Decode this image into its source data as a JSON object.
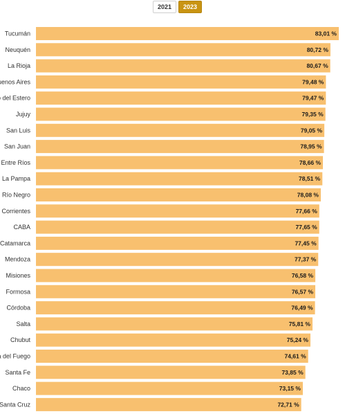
{
  "toggle": {
    "options": [
      "2021",
      "2023"
    ],
    "selected": "2023"
  },
  "colors": {
    "bar": "#f8c06f",
    "toggle_active": "#c99412"
  },
  "chart_data": {
    "type": "bar",
    "orientation": "horizontal",
    "categories": [
      "Tucumán",
      "Neuquén",
      "La Rioja",
      "Buenos Aires",
      "Santiago del Estero",
      "Jujuy",
      "San Luis",
      "San Juan",
      "Entre Ríos",
      "La Pampa",
      "Río Negro",
      "Corrientes",
      "CABA",
      "Catamarca",
      "Mendoza",
      "Misiones",
      "Formosa",
      "Córdoba",
      "Salta",
      "Chubut",
      "Tierra del Fuego",
      "Santa Fe",
      "Chaco",
      "Santa Cruz"
    ],
    "values": [
      83.01,
      80.72,
      80.67,
      79.48,
      79.47,
      79.35,
      79.05,
      78.95,
      78.66,
      78.51,
      78.08,
      77.66,
      77.65,
      77.45,
      77.37,
      76.58,
      76.57,
      76.49,
      75.81,
      75.24,
      74.61,
      73.85,
      73.15,
      72.71
    ],
    "value_labels": [
      "83,01 %",
      "80,72 %",
      "80,67 %",
      "79,48 %",
      "79,47 %",
      "79,35 %",
      "79,05 %",
      "78,95 %",
      "78,66 %",
      "78,51 %",
      "78,08 %",
      "77,66 %",
      "77,65 %",
      "77,45 %",
      "77,37 %",
      "76,58 %",
      "76,57 %",
      "76,49 %",
      "75,81 %",
      "75,24 %",
      "74,61 %",
      "73,85 %",
      "73,15 %",
      "72,71 %"
    ],
    "xlim": [
      0,
      83.01
    ],
    "grid": false,
    "legend": "none"
  }
}
